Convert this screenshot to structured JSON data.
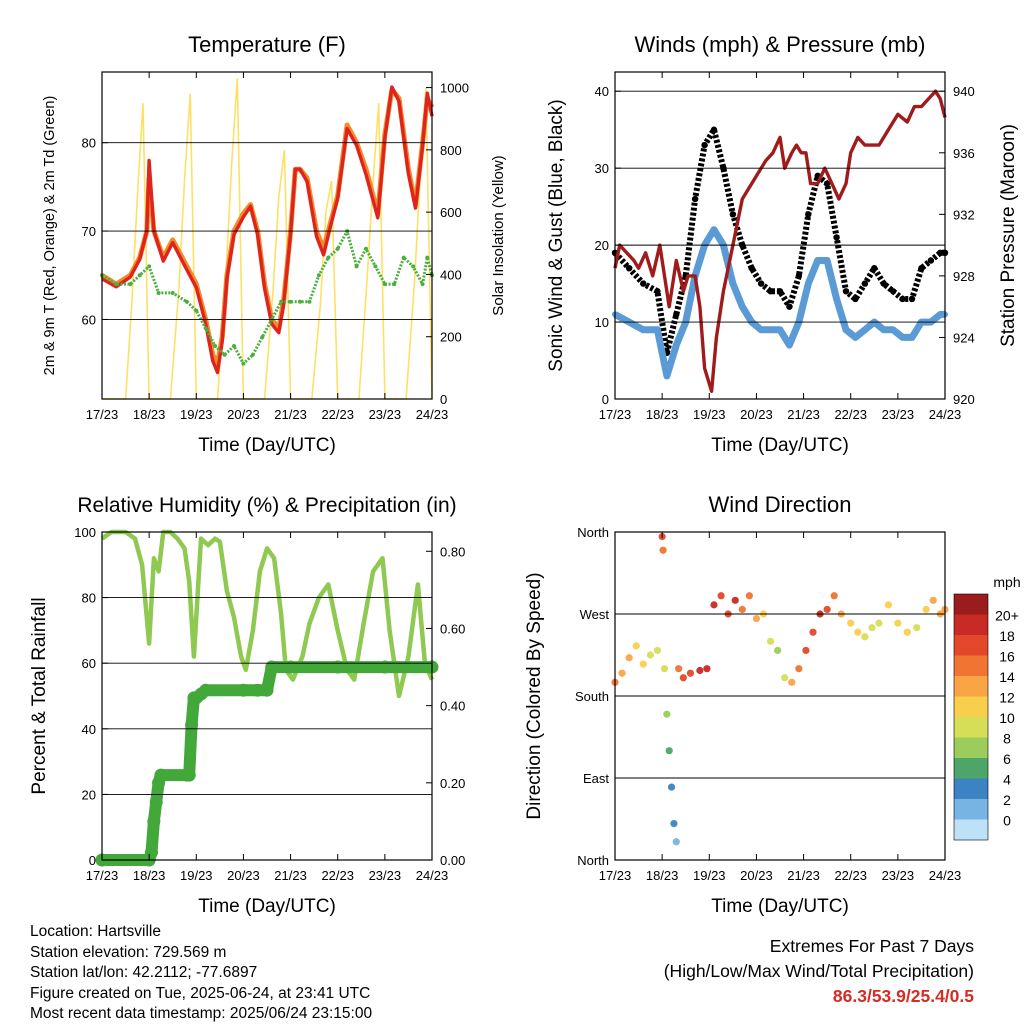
{
  "info": {
    "location": "Location: Hartsville",
    "elevation": "Station elevation: 729.569 m",
    "latlon": "Station lat/lon: 42.2112; -77.6897",
    "created": "Figure created on Tue, 2025-06-24, at 23:41 UTC",
    "latest": "Most recent data timestamp: 2025/06/24 23:15:00"
  },
  "extremes": {
    "title": "Extremes For Past 7 Days",
    "subtitle": "(High/Low/Max Wind/Total Precipitation)",
    "values": "86.3/53.9/25.4/0.5",
    "color": "#d62c24"
  },
  "chart_data": [
    {
      "type": "line",
      "title": "Temperature (F)",
      "xlabel": "Time (Day/UTC)",
      "ylabel": "2m & 9m T (Red, Orange) & 2m Td (Green)",
      "ylabel_right": "Solar Insolation (Yellow)",
      "x_ticks": [
        "17/23",
        "18/23",
        "19/23",
        "20/23",
        "21/23",
        "22/23",
        "23/23",
        "24/23"
      ],
      "ylim": [
        51,
        88
      ],
      "y_ticks": [
        60,
        70,
        80
      ],
      "ylim_right": [
        0,
        1050
      ],
      "y_ticks_right": [
        0,
        200,
        400,
        600,
        800,
        1000
      ],
      "grid": "horizontal",
      "colors": {
        "t2m": "#e0231c",
        "t9m": "#f28c28",
        "td2m": "#4caf3f",
        "solar": "#ffe066"
      },
      "series": [
        {
          "key": "t9m",
          "x": [
            0,
            0.3,
            0.6,
            0.8,
            0.95,
            1.0,
            1.1,
            1.3,
            1.5,
            1.8,
            2.0,
            2.2,
            2.35,
            2.45,
            2.55,
            2.65,
            2.8,
            3.0,
            3.15,
            3.3,
            3.45,
            3.6,
            3.75,
            3.85,
            4.0,
            4.1,
            4.2,
            4.35,
            4.55,
            4.7,
            4.85,
            5.0,
            5.2,
            5.4,
            5.6,
            5.85,
            6.0,
            6.15,
            6.3,
            6.5,
            6.65,
            6.8,
            6.9,
            7.0
          ],
          "values": [
            65,
            64,
            65,
            67,
            70,
            76,
            70,
            67,
            69,
            66,
            64,
            60,
            56,
            55,
            58,
            65,
            70,
            72,
            73,
            70,
            64,
            60,
            59,
            62,
            70,
            77,
            77,
            76,
            70,
            68,
            71,
            74,
            82,
            80,
            77,
            72,
            81,
            86,
            85,
            77,
            73,
            80,
            85,
            84
          ]
        },
        {
          "key": "t2m",
          "x": [
            0,
            0.3,
            0.6,
            0.8,
            0.95,
            1.0,
            1.1,
            1.3,
            1.5,
            1.8,
            2.0,
            2.2,
            2.35,
            2.45,
            2.55,
            2.65,
            2.8,
            3.0,
            3.15,
            3.3,
            3.45,
            3.6,
            3.75,
            3.85,
            4.0,
            4.1,
            4.2,
            4.35,
            4.55,
            4.7,
            4.85,
            5.0,
            5.2,
            5.4,
            5.6,
            5.85,
            6.0,
            6.15,
            6.3,
            6.5,
            6.65,
            6.8,
            6.9,
            7.0
          ],
          "values": [
            64.6,
            63.7,
            64.8,
            66.8,
            70,
            78,
            70,
            66.6,
            68.7,
            65.6,
            63.6,
            59.5,
            55.3,
            54,
            57.5,
            64.6,
            69.6,
            71.6,
            72.8,
            69.6,
            63.5,
            59.5,
            58.5,
            61.6,
            69.7,
            77,
            77,
            75.6,
            69.4,
            67.3,
            70.6,
            73.7,
            81.6,
            79.7,
            76.4,
            71.5,
            80.6,
            86.3,
            84.7,
            76.5,
            72.6,
            79.7,
            85.6,
            83
          ]
        },
        {
          "key": "td2m",
          "x": [
            0,
            0.3,
            0.6,
            0.8,
            1.0,
            1.2,
            1.5,
            1.8,
            2.0,
            2.2,
            2.4,
            2.6,
            2.8,
            3.0,
            3.2,
            3.4,
            3.6,
            3.8,
            4.0,
            4.2,
            4.4,
            4.6,
            4.8,
            5.0,
            5.2,
            5.4,
            5.6,
            5.8,
            6.0,
            6.2,
            6.4,
            6.6,
            6.8,
            6.9,
            7.0
          ],
          "values": [
            65,
            64,
            64,
            65,
            66,
            63,
            63,
            62,
            61,
            59,
            57,
            56,
            57,
            55,
            56,
            58,
            60,
            62,
            62,
            62,
            62,
            65,
            67,
            68,
            70,
            66,
            68,
            66,
            64,
            64,
            67,
            66,
            64,
            67,
            65
          ]
        },
        {
          "key": "solar",
          "x": [
            0,
            0.5,
            0.63,
            0.75,
            0.87,
            1.0,
            1.25,
            1.45,
            1.63,
            1.75,
            1.87,
            2.0,
            2.25,
            2.45,
            2.63,
            2.75,
            2.87,
            3.0,
            3.25,
            3.45,
            3.63,
            3.75,
            3.87,
            4.0,
            4.25,
            4.45,
            4.63,
            4.75,
            4.87,
            5.0,
            5.25,
            5.45,
            5.63,
            5.75,
            5.87,
            6.0,
            6.25,
            6.45,
            6.63,
            6.75,
            6.87,
            7.0
          ],
          "values": [
            0,
            0,
            300,
            650,
            950,
            0,
            0,
            0,
            350,
            700,
            980,
            0,
            0,
            0,
            400,
            750,
            1030,
            0,
            0,
            0,
            350,
            650,
            800,
            0,
            0,
            0,
            300,
            600,
            700,
            0,
            0,
            0,
            400,
            700,
            950,
            0,
            0,
            0,
            380,
            720,
            1000,
            0
          ]
        }
      ]
    },
    {
      "type": "scatter",
      "title": "Winds (mph) & Pressure (mb)",
      "xlabel": "Time (Day/UTC)",
      "ylabel": "Sonic Wind & Gust (Blue, Black)",
      "ylabel_right": "Station Pressure (Maroon)",
      "x_ticks": [
        "17/23",
        "18/23",
        "19/23",
        "20/23",
        "21/23",
        "22/23",
        "23/23",
        "24/23"
      ],
      "ylim": [
        0,
        42.5
      ],
      "y_ticks": [
        0,
        10,
        20,
        30,
        40
      ],
      "ylim_right": [
        920,
        941.25
      ],
      "y_ticks_right": [
        920,
        924,
        928,
        932,
        936,
        940
      ],
      "grid": "horizontal",
      "colors": {
        "wind": "#5b9bd5",
        "gust": "#000000",
        "pressure": "#a01b1b"
      },
      "series": [
        {
          "key": "wind",
          "x": [
            0,
            0.3,
            0.6,
            0.9,
            1.1,
            1.3,
            1.5,
            1.7,
            1.9,
            2.1,
            2.3,
            2.5,
            2.7,
            2.9,
            3.1,
            3.3,
            3.5,
            3.7,
            3.9,
            4.1,
            4.3,
            4.5,
            4.7,
            4.9,
            5.1,
            5.3,
            5.5,
            5.7,
            5.9,
            6.1,
            6.3,
            6.5,
            6.7,
            6.9,
            7.0
          ],
          "values": [
            11,
            10,
            9,
            9,
            3,
            7,
            10,
            16,
            20,
            22,
            20,
            15,
            12,
            10,
            9,
            9,
            9,
            7,
            10,
            15,
            18,
            18,
            13,
            9,
            8,
            9,
            10,
            9,
            9,
            8,
            8,
            10,
            10,
            11,
            11
          ]
        },
        {
          "key": "gust",
          "x": [
            0,
            0.3,
            0.6,
            0.9,
            1.1,
            1.3,
            1.5,
            1.7,
            1.9,
            2.1,
            2.3,
            2.5,
            2.7,
            2.9,
            3.1,
            3.3,
            3.5,
            3.7,
            3.9,
            4.1,
            4.3,
            4.5,
            4.7,
            4.9,
            5.1,
            5.3,
            5.5,
            5.7,
            5.9,
            6.1,
            6.3,
            6.5,
            6.7,
            6.9,
            7.0
          ],
          "values": [
            19,
            17,
            15,
            14,
            6,
            11,
            16,
            26,
            33,
            35,
            30,
            24,
            20,
            17,
            15,
            14,
            14,
            12,
            16,
            24,
            29,
            28,
            21,
            14,
            13,
            15,
            17,
            15,
            14,
            13,
            13,
            17,
            18,
            19,
            19
          ]
        },
        {
          "key": "pressure",
          "x": [
            0,
            0.1,
            0.25,
            0.4,
            0.5,
            0.65,
            0.8,
            0.95,
            1.05,
            1.15,
            1.3,
            1.45,
            1.55,
            1.7,
            1.8,
            1.9,
            2.05,
            2.15,
            2.3,
            2.5,
            2.7,
            2.9,
            3.1,
            3.2,
            3.35,
            3.5,
            3.6,
            3.75,
            3.85,
            3.95,
            4.05,
            4.15,
            4.3,
            4.45,
            4.6,
            4.75,
            4.9,
            5.0,
            5.15,
            5.3,
            5.45,
            5.6,
            5.8,
            6.0,
            6.2,
            6.35,
            6.5,
            6.65,
            6.8,
            6.9,
            7.0
          ],
          "values": [
            928.5,
            930,
            929.5,
            929,
            928.5,
            929.5,
            928,
            930,
            928,
            926,
            929,
            927,
            928,
            928,
            926,
            922,
            920.5,
            924,
            927,
            930,
            933,
            934,
            935,
            935.5,
            936,
            937,
            935,
            936,
            936.5,
            936,
            936,
            934,
            934,
            935,
            934,
            933,
            934,
            936,
            937,
            936.5,
            936.5,
            936.5,
            937.5,
            938.5,
            938,
            939,
            939,
            939.5,
            940,
            939.5,
            938.3
          ]
        }
      ]
    },
    {
      "type": "line",
      "title": "Relative Humidity (%) & Precipitation (in)",
      "xlabel": "Time (Day/UTC)",
      "ylabel": "Percent & Total Rainfall",
      "x_ticks": [
        "17/23",
        "18/23",
        "19/23",
        "20/23",
        "21/23",
        "22/23",
        "23/23",
        "24/23"
      ],
      "ylim": [
        0,
        100
      ],
      "y_ticks": [
        0,
        20,
        40,
        60,
        80,
        100
      ],
      "ylim_right": [
        0,
        0.85
      ],
      "y_ticks_right": [
        0.0,
        0.2,
        0.4,
        0.6,
        0.8
      ],
      "y_tick_labels_right": [
        "0.00",
        "0.20",
        "0.40",
        "0.60",
        "0.80"
      ],
      "grid": "horizontal",
      "colors": {
        "rh": "#8fc951",
        "precip": "#43a83a"
      },
      "series": [
        {
          "key": "rh",
          "x": [
            0,
            0.2,
            0.5,
            0.7,
            0.85,
            1.0,
            1.1,
            1.2,
            1.3,
            1.45,
            1.6,
            1.75,
            1.85,
            1.95,
            2.1,
            2.25,
            2.4,
            2.5,
            2.65,
            2.8,
            2.95,
            3.05,
            3.2,
            3.35,
            3.5,
            3.65,
            3.8,
            3.9,
            4.05,
            4.25,
            4.4,
            4.6,
            4.8,
            5.0,
            5.2,
            5.35,
            5.55,
            5.75,
            5.95,
            6.1,
            6.3,
            6.5,
            6.7,
            6.85,
            7.0
          ],
          "values": [
            98,
            100,
            100,
            98,
            90,
            66,
            92,
            88,
            100,
            100,
            98,
            95,
            85,
            62,
            98,
            96,
            98,
            97,
            82,
            74,
            62,
            58,
            70,
            88,
            95,
            92,
            75,
            58,
            55,
            62,
            72,
            80,
            84,
            70,
            58,
            55,
            72,
            88,
            92,
            70,
            50,
            62,
            84,
            60,
            55
          ]
        },
        {
          "key": "precip",
          "x": [
            0,
            1.0,
            1.05,
            1.1,
            1.15,
            1.2,
            1.25,
            1.8,
            1.85,
            1.9,
            1.95,
            2.0,
            2.1,
            2.2,
            3.0,
            3.3,
            3.5,
            3.6,
            4.0,
            5.0,
            6.0,
            7.0
          ],
          "values": [
            0,
            0,
            0.02,
            0.1,
            0.15,
            0.2,
            0.22,
            0.22,
            0.22,
            0.35,
            0.42,
            0.42,
            0.43,
            0.44,
            0.44,
            0.44,
            0.44,
            0.5,
            0.5,
            0.5,
            0.5,
            0.5
          ]
        }
      ]
    },
    {
      "type": "scatter",
      "title": "Wind Direction",
      "xlabel": "Time (Day/UTC)",
      "ylabel": "Direction (Colored By Speed)",
      "x_ticks": [
        "17/23",
        "18/23",
        "19/23",
        "20/23",
        "21/23",
        "22/23",
        "23/23",
        "24/23"
      ],
      "ylim": [
        0,
        360
      ],
      "y_ticks": [
        0,
        90,
        180,
        270,
        360
      ],
      "y_tick_labels": [
        "North",
        "East",
        "South",
        "West",
        "North"
      ],
      "grid": "horizontal",
      "colorbar": {
        "title": "mph",
        "labels": [
          "20+",
          "18",
          "16",
          "14",
          "12",
          "10",
          "8",
          "6",
          "4",
          "2",
          "0"
        ],
        "colors": [
          "#9b1c1c",
          "#c82a25",
          "#e3482b",
          "#f07432",
          "#f9a545",
          "#f8cf4c",
          "#d6de58",
          "#9ccd5a",
          "#4ea56a",
          "#3b83c2",
          "#77b4e3",
          "#bde1f6"
        ]
      },
      "series": [
        {
          "key": "direction",
          "x": [
            0,
            0.15,
            0.3,
            0.45,
            0.6,
            0.75,
            0.9,
            1.0,
            1.02,
            1.05,
            1.1,
            1.15,
            1.2,
            1.25,
            1.3,
            1.35,
            1.45,
            1.6,
            1.8,
            1.95,
            2.1,
            2.25,
            2.4,
            2.55,
            2.7,
            2.85,
            3.0,
            3.15,
            3.3,
            3.45,
            3.6,
            3.75,
            3.9,
            4.05,
            4.2,
            4.35,
            4.5,
            4.65,
            4.8,
            5.0,
            5.15,
            5.3,
            5.45,
            5.6,
            5.8,
            6.0,
            6.2,
            6.4,
            6.6,
            6.75,
            6.9,
            7.0
          ],
          "values": [
            195,
            205,
            222,
            235,
            215,
            225,
            230,
            355,
            340,
            210,
            160,
            120,
            80,
            40,
            20,
            210,
            200,
            205,
            208,
            210,
            280,
            290,
            270,
            285,
            275,
            290,
            265,
            270,
            240,
            230,
            200,
            195,
            210,
            230,
            250,
            270,
            275,
            290,
            270,
            260,
            250,
            245,
            255,
            260,
            280,
            260,
            250,
            255,
            275,
            285,
            270,
            275
          ],
          "speed": [
            14,
            13,
            12,
            11,
            10,
            9,
            8,
            16,
            15,
            9,
            6,
            5,
            3,
            2,
            1,
            15,
            16,
            17,
            18,
            19,
            18,
            16,
            17,
            18,
            15,
            14,
            12,
            10,
            8,
            7,
            9,
            12,
            14,
            16,
            17,
            18,
            16,
            14,
            12,
            11,
            10,
            9,
            8,
            9,
            10,
            11,
            10,
            9,
            11,
            12,
            13,
            12
          ]
        }
      ]
    }
  ]
}
